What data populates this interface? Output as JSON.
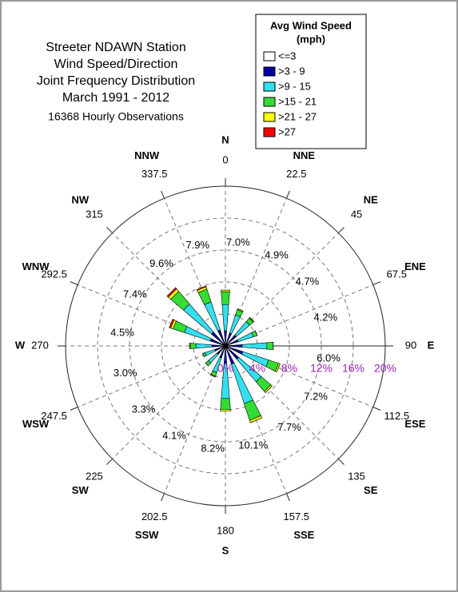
{
  "chart_data": {
    "type": "windrose",
    "title": [
      "Streeter NDAWN Station",
      "Wind Speed/Direction",
      "Joint Frequency Distribution",
      "March 1991 - 2012"
    ],
    "subtitle": "16368 Hourly Observations",
    "legend_title": [
      "Avg Wind Speed",
      "(mph)"
    ],
    "categories": [
      "N",
      "NNE",
      "NE",
      "ENE",
      "E",
      "ESE",
      "SE",
      "SSE",
      "S",
      "SSW",
      "SW",
      "WSW",
      "W",
      "WNW",
      "NW",
      "NNW"
    ],
    "degrees": [
      0,
      22.5,
      45,
      67.5,
      90,
      112.5,
      135,
      157.5,
      180,
      202.5,
      225,
      247.5,
      270,
      292.5,
      315,
      337.5
    ],
    "totals": [
      7.0,
      4.9,
      4.7,
      4.2,
      6.0,
      7.2,
      7.7,
      10.1,
      8.2,
      4.1,
      3.3,
      3.0,
      4.5,
      7.4,
      9.6,
      7.9
    ],
    "value_labels": [
      "7.0%",
      "4.9%",
      "4.7%",
      "4.2%",
      "6.0%",
      "7.2%",
      "7.7%",
      "10.1%",
      "8.2%",
      "4.1%",
      "3.3%",
      "3.0%",
      "4.5%",
      "7.4%",
      "9.6%",
      "7.9%"
    ],
    "series": [
      {
        "name": "<=3",
        "color": "#ffffff",
        "values": [
          0.1,
          0.1,
          0.1,
          0.1,
          0.1,
          0.1,
          0.1,
          0.1,
          0.1,
          0.1,
          0.1,
          0.1,
          0.1,
          0.1,
          0.1,
          0.1
        ]
      },
      {
        "name": ">3 - 9",
        "color": "#0000a0",
        "values": [
          1.8,
          1.6,
          1.7,
          1.6,
          2.0,
          2.2,
          2.1,
          2.3,
          2.1,
          1.5,
          1.3,
          1.3,
          1.6,
          1.9,
          2.2,
          2.0
        ]
      },
      {
        "name": ">9 - 15",
        "color": "#33e0f0",
        "values": [
          3.3,
          2.4,
          2.2,
          2.0,
          3.1,
          3.4,
          3.7,
          5.2,
          4.4,
          1.9,
          1.4,
          1.3,
          2.0,
          3.4,
          4.6,
          3.7
        ]
      },
      {
        "name": ">15 - 21",
        "color": "#33dd33",
        "values": [
          1.6,
          0.7,
          0.6,
          0.5,
          0.8,
          1.3,
          1.6,
          2.2,
          1.4,
          0.5,
          0.5,
          0.3,
          0.7,
          1.5,
          2.1,
          1.7
        ]
      },
      {
        "name": ">21 - 27",
        "color": "#ffff00",
        "values": [
          0.2,
          0.1,
          0.1,
          0.0,
          0.0,
          0.2,
          0.2,
          0.3,
          0.2,
          0.1,
          0.0,
          0.0,
          0.1,
          0.3,
          0.4,
          0.3
        ]
      },
      {
        "name": ">27",
        "color": "#ff0000",
        "values": [
          0.0,
          0.0,
          0.0,
          0.0,
          0.0,
          0.0,
          0.0,
          0.0,
          0.0,
          0.0,
          0.0,
          0.0,
          0.0,
          0.2,
          0.2,
          0.1
        ]
      }
    ],
    "rlim": [
      0,
      20
    ],
    "rticks": [
      {
        "value": 0,
        "label": "0%"
      },
      {
        "value": 4,
        "label": "4%"
      },
      {
        "value": 8,
        "label": "8%"
      },
      {
        "value": 12,
        "label": "12%"
      },
      {
        "value": 16,
        "label": "16%"
      },
      {
        "value": 20,
        "label": "20%"
      }
    ],
    "grid": true
  }
}
